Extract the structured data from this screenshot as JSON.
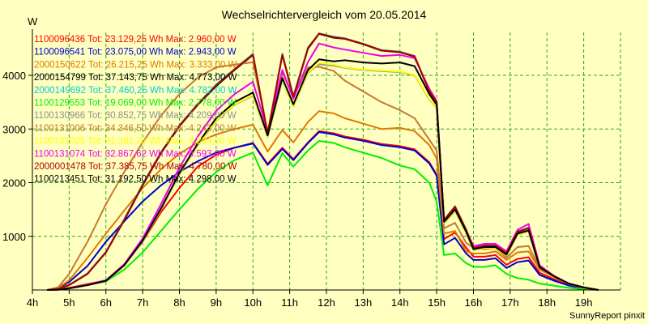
{
  "chart_data": {
    "type": "line",
    "title": "Wechselrichtervergleich vom 20.05.2014",
    "ylabel": "W",
    "footer": "SunnyReport pinxit",
    "x_ticks": [
      4,
      5,
      6,
      7,
      8,
      9,
      10,
      11,
      12,
      13,
      14,
      15,
      16,
      17,
      18,
      19
    ],
    "x_tick_labels": [
      "4h",
      "5h",
      "6h",
      "7h",
      "8h",
      "9h",
      "10h",
      "11h",
      "12h",
      "13h",
      "14h",
      "15h",
      "16h",
      "17h",
      "18h",
      "19h"
    ],
    "xlim": [
      4,
      20
    ],
    "ylim": [
      0,
      4800
    ],
    "y_ticks": [
      1000,
      2000,
      3000,
      4000
    ],
    "y_tick_labels": [
      "1000",
      "2000",
      "3000",
      "4000"
    ],
    "grid": true,
    "legend_placement": "top-left",
    "x": [
      4.4,
      4.7,
      5.0,
      5.5,
      6.0,
      6.5,
      7.0,
      7.5,
      8.0,
      8.5,
      9.0,
      9.5,
      10.0,
      10.4,
      10.8,
      11.1,
      11.5,
      11.8,
      12.2,
      12.5,
      13.0,
      13.5,
      14.0,
      14.4,
      14.8,
      15.0,
      15.2,
      15.5,
      15.8,
      16.0,
      16.3,
      16.6,
      16.9,
      17.2,
      17.5,
      17.8,
      18.2,
      18.6,
      19.0,
      19.4
    ],
    "series": [
      {
        "name": "1100096436",
        "legend": "1100096436 Tot: 23.129,25 Wh Max: 2.960,00 W",
        "color": "#ff0000",
        "values": [
          0,
          10,
          40,
          110,
          180,
          480,
          900,
          1450,
          1900,
          2300,
          2520,
          2650,
          2740,
          2350,
          2650,
          2440,
          2750,
          2960,
          2920,
          2860,
          2800,
          2720,
          2680,
          2620,
          2380,
          2150,
          950,
          1070,
          790,
          620,
          620,
          650,
          470,
          580,
          610,
          320,
          200,
          100,
          40,
          0
        ]
      },
      {
        "name": "1100096541",
        "legend": "1100096541 Tot: 23.075,00 Wh Max: 2.943,00 W",
        "color": "#0000cc",
        "values": [
          0,
          30,
          150,
          450,
          900,
          1280,
          1650,
          1950,
          2200,
          2400,
          2560,
          2650,
          2730,
          2330,
          2630,
          2420,
          2740,
          2943,
          2900,
          2840,
          2780,
          2700,
          2660,
          2600,
          2360,
          2130,
          850,
          970,
          680,
          560,
          560,
          590,
          410,
          520,
          550,
          280,
          170,
          80,
          30,
          0
        ]
      },
      {
        "name": "2000150622",
        "legend": "2000150622 Tot: 26.215,25 Wh Max: 3.333,00 W",
        "color": "#e07800",
        "values": [
          0,
          40,
          180,
          600,
          1050,
          1480,
          1900,
          2250,
          2540,
          2750,
          2900,
          3000,
          3080,
          2580,
          2980,
          2750,
          3130,
          3333,
          3290,
          3200,
          3100,
          3000,
          3020,
          2960,
          2700,
          2450,
          1050,
          1100,
          720,
          680,
          680,
          720,
          560,
          700,
          720,
          380,
          240,
          110,
          40,
          0
        ]
      },
      {
        "name": "2000154799",
        "legend": "2000154799 Tot: 37.143,75 Wh Max: 4.773,00 W",
        "color": "#000000",
        "values": [
          0,
          20,
          90,
          300,
          700,
          1300,
          1950,
          2550,
          3050,
          3450,
          3800,
          4100,
          4380,
          2900,
          4380,
          3590,
          4500,
          4773,
          4700,
          4680,
          4580,
          4460,
          4430,
          4350,
          3700,
          3500,
          1300,
          1550,
          1120,
          780,
          820,
          820,
          680,
          1080,
          1150,
          430,
          250,
          120,
          50,
          0
        ]
      },
      {
        "name": "2000149692",
        "legend": "2000149692 Tot: 37.460,25 Wh Max: 4.782,00 W",
        "color": "#00cccc",
        "values": [
          0,
          20,
          95,
          310,
          710,
          1320,
          1970,
          2570,
          3070,
          3470,
          3830,
          4120,
          4400,
          2920,
          4400,
          3610,
          4520,
          4782,
          4720,
          4690,
          4590,
          4470,
          4440,
          4360,
          3710,
          3510,
          1310,
          1560,
          1130,
          790,
          830,
          830,
          690,
          1090,
          1160,
          440,
          260,
          120,
          50,
          0
        ]
      },
      {
        "name": "1100129553",
        "legend": "1100129553 Tot: 19.069,00 Wh Max: 2.778,00 W",
        "color": "#00ee00",
        "values": [
          0,
          5,
          30,
          90,
          160,
          380,
          700,
          1100,
          1500,
          1880,
          2200,
          2420,
          2560,
          1950,
          2550,
          2300,
          2600,
          2778,
          2740,
          2660,
          2560,
          2460,
          2320,
          2250,
          2000,
          1650,
          650,
          680,
          500,
          430,
          430,
          460,
          300,
          220,
          190,
          120,
          80,
          40,
          15,
          0
        ]
      },
      {
        "name": "1100130966",
        "legend": "1100130966 Tot: 30.852,75 Wh Max: 4.209,00 W",
        "color": "#909090",
        "values": [
          0,
          5,
          30,
          90,
          170,
          450,
          900,
          1500,
          2150,
          2700,
          3150,
          3450,
          3620,
          2850,
          3900,
          3420,
          4050,
          4209,
          4180,
          4140,
          4100,
          4080,
          4060,
          4000,
          3550,
          3400,
          1240,
          1470,
          1060,
          740,
          780,
          780,
          640,
          1030,
          1090,
          410,
          240,
          110,
          40,
          0
        ]
      },
      {
        "name": "1100131006",
        "legend": "1100131006 Tot: 34.346,50 Wh Max: 4.243,00 W",
        "color": "#c87830",
        "values": [
          0,
          50,
          300,
          900,
          1600,
          2200,
          2750,
          3250,
          3650,
          3960,
          4150,
          4200,
          4243,
          2950,
          4050,
          3600,
          4150,
          4160,
          4080,
          3900,
          3700,
          3500,
          3350,
          3200,
          2800,
          2600,
          1150,
          1250,
          880,
          780,
          760,
          780,
          600,
          800,
          820,
          400,
          240,
          110,
          40,
          0
        ]
      },
      {
        "name": "1100131025",
        "legend": "1100131025 Tot: 31.382,25 Wh Max: 4.234,00 W",
        "color": "#ffff00",
        "values": [
          0,
          5,
          30,
          90,
          170,
          450,
          910,
          1510,
          2160,
          2710,
          3160,
          3460,
          3630,
          2860,
          3910,
          3430,
          4060,
          4234,
          4200,
          4150,
          4110,
          4090,
          4070,
          4010,
          3560,
          3410,
          1245,
          1475,
          1065,
          745,
          785,
          785,
          645,
          1035,
          1095,
          415,
          245,
          115,
          40,
          0
        ]
      },
      {
        "name": "1100131074",
        "legend": "1100131074 Tot: 32.867,62 Wh Max: 4.593,00 W",
        "color": "#ee00ee",
        "values": [
          0,
          6,
          32,
          100,
          180,
          480,
          960,
          1600,
          2280,
          2860,
          3340,
          3650,
          3880,
          2950,
          4100,
          3560,
          4250,
          4593,
          4520,
          4480,
          4420,
          4360,
          4380,
          4320,
          3750,
          3520,
          1290,
          1540,
          1110,
          820,
          860,
          860,
          720,
          1120,
          1230,
          460,
          260,
          120,
          50,
          0
        ]
      },
      {
        "name": "2000001478",
        "legend": "2000001478 Tot: 37.385,75 Wh Max: 4.780,00 W",
        "color": "#b00000",
        "values": [
          0,
          22,
          92,
          305,
          705,
          1310,
          1960,
          2560,
          3060,
          3460,
          3815,
          4110,
          4390,
          2910,
          4390,
          3600,
          4510,
          4780,
          4710,
          4685,
          4585,
          4465,
          4435,
          4355,
          3705,
          3505,
          1305,
          1555,
          1125,
          785,
          825,
          825,
          685,
          1085,
          1155,
          435,
          255,
          120,
          50,
          0
        ]
      },
      {
        "name": "1100213451",
        "legend": "1100213451 Tot: 31.192,50 Wh Max: 4.298,00 W",
        "color": "#000000",
        "values": [
          0,
          5,
          30,
          90,
          170,
          460,
          920,
          1520,
          2180,
          2730,
          3200,
          3500,
          3680,
          2880,
          3950,
          3460,
          4100,
          4298,
          4260,
          4280,
          4240,
          4220,
          4240,
          4170,
          3650,
          3450,
          1270,
          1500,
          1090,
          760,
          800,
          800,
          660,
          1050,
          1110,
          420,
          250,
          115,
          45,
          0
        ]
      }
    ]
  }
}
